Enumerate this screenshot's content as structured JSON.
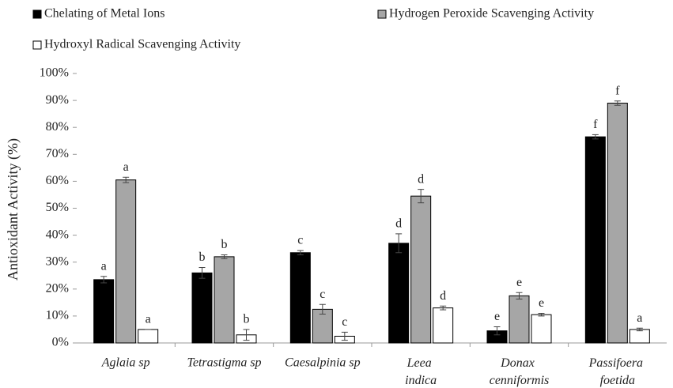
{
  "chart_data": {
    "type": "bar",
    "y_label": "Antioxidant Activity (%)",
    "categories": [
      "Aglaia sp",
      "Tetrastigma sp",
      "Caesalpinia sp",
      "Leea indica",
      "Donax cenniformis",
      "Passifoera foetida"
    ],
    "series": [
      {
        "name": "Chelating of Metal Ions",
        "color": "#000000",
        "values": [
          23.5,
          26,
          33.5,
          37,
          4.5,
          76.5
        ],
        "errors": [
          1.2,
          2,
          0.8,
          3.5,
          1.5,
          0.8
        ],
        "letters": [
          "a",
          "b",
          "c",
          "d",
          "e",
          "f"
        ]
      },
      {
        "name": "Hydrogen Peroxide Scavenging Activity",
        "color": "#a6a6a6",
        "values": [
          60.5,
          32,
          12.5,
          54.5,
          17.5,
          89
        ],
        "errors": [
          1,
          0.7,
          1.8,
          2.5,
          1.2,
          0.8
        ],
        "letters": [
          "a",
          "b",
          "c",
          "d",
          "e",
          "f"
        ]
      },
      {
        "name": "Hydroxyl Radical Scavenging Activity",
        "color": "#ffffff",
        "values": [
          5,
          3,
          2.5,
          13,
          10.5,
          5
        ],
        "errors": [
          0,
          2,
          1.5,
          0.7,
          0.5,
          0.5
        ],
        "letters": [
          "a",
          "b",
          "c",
          "d",
          "e",
          "a"
        ]
      }
    ],
    "ylim": [
      0,
      100
    ],
    "yticks": [
      {
        "value": 0,
        "label": "0%"
      },
      {
        "value": 10,
        "label": "10%"
      },
      {
        "value": 20,
        "label": "20%"
      },
      {
        "value": 30,
        "label": "30%"
      },
      {
        "value": 40,
        "label": "40%"
      },
      {
        "value": 50,
        "label": "50%"
      },
      {
        "value": 60,
        "label": "60%"
      },
      {
        "value": 70,
        "label": "70%"
      },
      {
        "value": 80,
        "label": "80%"
      },
      {
        "value": 90,
        "label": "90%"
      },
      {
        "value": 100,
        "label": "100%"
      }
    ],
    "grid": false
  }
}
